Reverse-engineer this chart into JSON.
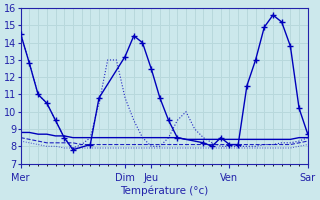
{
  "bg_color": "#cce8ec",
  "grid_color": "#b8d8dc",
  "line_color": "#0000bb",
  "xlabel": "Température (°c)",
  "ylim": [
    7,
    16
  ],
  "xlim": [
    0,
    33
  ],
  "yticks": [
    7,
    8,
    9,
    10,
    11,
    12,
    13,
    14,
    15,
    16
  ],
  "x_day_labels": [
    "Mer",
    "Dim",
    "Jeu",
    "Ven",
    "Sar"
  ],
  "x_day_positions": [
    0,
    12,
    15,
    24,
    33
  ],
  "series_main_x": [
    0,
    1,
    2,
    3,
    4,
    5,
    6,
    8,
    9,
    12,
    13,
    14,
    15,
    16,
    17,
    18,
    21,
    22,
    23,
    24,
    25,
    26,
    27,
    28,
    29,
    30,
    31,
    32,
    33
  ],
  "series_main_y": [
    14.5,
    12.8,
    11.0,
    10.5,
    9.5,
    8.5,
    7.8,
    8.1,
    10.8,
    13.2,
    14.4,
    14.0,
    12.5,
    10.8,
    9.5,
    8.5,
    8.2,
    8.0,
    8.5,
    8.1,
    8.1,
    11.5,
    13.0,
    14.9,
    15.6,
    15.2,
    13.8,
    10.2,
    8.7
  ],
  "series_a_x": [
    0,
    1,
    2,
    3,
    4,
    5,
    6,
    7,
    8,
    9,
    10,
    11,
    12,
    13,
    14,
    15,
    16,
    17,
    18,
    19,
    20,
    21,
    22,
    23,
    24,
    25,
    26,
    27,
    28,
    29,
    30,
    31,
    32,
    33
  ],
  "series_a_y": [
    8.8,
    8.8,
    8.7,
    8.7,
    8.6,
    8.6,
    8.5,
    8.5,
    8.5,
    8.5,
    8.5,
    8.5,
    8.5,
    8.5,
    8.5,
    8.5,
    8.5,
    8.5,
    8.5,
    8.4,
    8.4,
    8.4,
    8.4,
    8.4,
    8.4,
    8.4,
    8.4,
    8.4,
    8.4,
    8.4,
    8.4,
    8.4,
    8.5,
    8.5
  ],
  "series_b_x": [
    0,
    1,
    2,
    3,
    4,
    5,
    6,
    7,
    8,
    9,
    10,
    11,
    12,
    13,
    14,
    15,
    16,
    17,
    18,
    19,
    20,
    21,
    22,
    23,
    24,
    25,
    26,
    27,
    28,
    29,
    30,
    31,
    32,
    33
  ],
  "series_b_y": [
    8.5,
    8.4,
    8.3,
    8.2,
    8.2,
    8.2,
    8.2,
    8.1,
    8.1,
    8.1,
    8.1,
    8.1,
    8.1,
    8.1,
    8.1,
    8.1,
    8.1,
    8.1,
    8.1,
    8.1,
    8.1,
    8.1,
    8.1,
    8.1,
    8.1,
    8.1,
    8.1,
    8.1,
    8.1,
    8.1,
    8.1,
    8.1,
    8.2,
    8.3
  ],
  "series_c_x": [
    0,
    1,
    2,
    3,
    4,
    5,
    6,
    7,
    8,
    9,
    10,
    11,
    12,
    13,
    14,
    15,
    16,
    17,
    18,
    19,
    20,
    21,
    22,
    23,
    24,
    25,
    26,
    27,
    28,
    29,
    30,
    31,
    32,
    33
  ],
  "series_c_y": [
    8.3,
    8.2,
    8.1,
    8.0,
    8.0,
    7.9,
    7.9,
    7.9,
    7.9,
    7.9,
    7.9,
    7.9,
    7.9,
    7.9,
    7.9,
    7.9,
    7.9,
    7.9,
    7.9,
    7.9,
    7.9,
    7.9,
    7.9,
    7.9,
    7.9,
    7.9,
    7.9,
    7.9,
    7.9,
    7.9,
    7.9,
    7.9,
    8.0,
    8.1
  ],
  "series_dotted_x": [
    0,
    1,
    2,
    3,
    4,
    5,
    6,
    7,
    8,
    9,
    10,
    11,
    12,
    13,
    14,
    15,
    16,
    17,
    18,
    19,
    20,
    21,
    22,
    23,
    24,
    25,
    26,
    27,
    28,
    29,
    30,
    31,
    32,
    33
  ],
  "series_dotted_y": [
    14.5,
    12.8,
    11.0,
    10.5,
    9.5,
    8.5,
    7.9,
    8.1,
    8.5,
    10.5,
    13.0,
    13.0,
    10.8,
    9.5,
    8.5,
    8.0,
    8.0,
    8.5,
    9.5,
    10.0,
    9.0,
    8.5,
    8.2,
    8.0,
    8.0,
    8.0,
    8.0,
    8.0,
    8.1,
    8.1,
    8.2,
    8.2,
    8.3,
    8.5
  ]
}
